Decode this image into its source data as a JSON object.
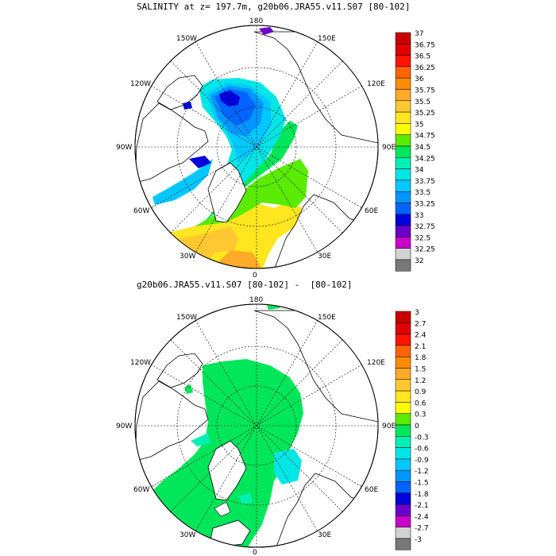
{
  "panels": [
    {
      "title": "SALINITY at z= 197.7m, g20b06.JRA55.v11.S07 [80-102]",
      "colorbar": {
        "labels": [
          "37",
          "36.75",
          "36.5",
          "36.25",
          "36",
          "35.75",
          "35.5",
          "35.25",
          "35",
          "34.75",
          "34.5",
          "34.25",
          "34",
          "33.75",
          "33.5",
          "33.25",
          "33",
          "32.75",
          "32.5",
          "32.25",
          "32"
        ]
      }
    },
    {
      "title": "g20b06.JRA55.v11.S07 [80-102] -  [80-102]",
      "colorbar": {
        "labels": [
          "3",
          "2.7",
          "2.4",
          "2.1",
          "1.8",
          "1.5",
          "1.2",
          "0.9",
          "0.6",
          "0.3",
          "0",
          "-0.3",
          "-0.6",
          "-0.9",
          "-1.2",
          "-1.5",
          "-1.8",
          "-2.1",
          "-2.4",
          "-2.7",
          "-3"
        ]
      }
    }
  ],
  "meridian_labels": {
    "top": "180",
    "bottom": "0",
    "upper_left": "150W",
    "upper_right": "150E",
    "mid_upper_left": "120W",
    "mid_upper_right": "120E",
    "left": "90W",
    "right": "90E",
    "lower_left": "60W",
    "lower_right": "60E",
    "bottom_left": "30W",
    "bottom_right": "30E"
  },
  "colors": {
    "colorbar": [
      "#c80000",
      "#e00000",
      "#ff1400",
      "#ff6400",
      "#ff8c00",
      "#ffaa28",
      "#ffc832",
      "#ffe61e",
      "#ffff00",
      "#5aeb00",
      "#00e65a",
      "#00f0b4",
      "#00e6e6",
      "#00c8ff",
      "#0096ff",
      "#0064ff",
      "#0000dc",
      "#6a00c8",
      "#c800c8",
      "#d2d2d2",
      "#787878"
    ]
  }
}
